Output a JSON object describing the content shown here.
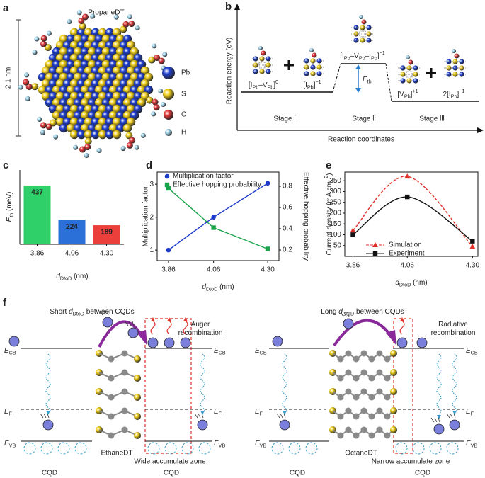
{
  "panel_labels": [
    "a",
    "b",
    "c",
    "d",
    "e",
    "f"
  ],
  "panel_a": {
    "title": "PropaneDT",
    "size": "2.1 nm",
    "legend": [
      {
        "name": "Pb",
        "color": "#1f3fd0"
      },
      {
        "name": "S",
        "color": "#f0cf1a"
      },
      {
        "name": "C",
        "color": "#e0393a"
      },
      {
        "name": "H",
        "color": "#9fd3ea"
      }
    ]
  },
  "panel_b": {
    "y_label": "Reaction energy (eV)",
    "x_label": "Reaction coordinates",
    "stages": [
      "Stage l",
      "Stage ll",
      "Stage lll"
    ],
    "barrier": [
      {
        "i": "E"
      },
      {
        "sub": "th"
      }
    ],
    "species": [
      [
        {
          "t": "[I"
        },
        {
          "sub": "Pb"
        },
        {
          "t": "–V"
        },
        {
          "sub": "Pb"
        },
        {
          "t": "]"
        },
        {
          "sup": "0"
        }
      ],
      [
        {
          "t": "[I"
        },
        {
          "sub": "Pb"
        },
        {
          "t": "]"
        },
        {
          "sup": "−1"
        }
      ],
      [
        {
          "t": "[I"
        },
        {
          "sub": "Pb"
        },
        {
          "t": "–V"
        },
        {
          "sub": "Pb"
        },
        {
          "t": "–I"
        },
        {
          "sub": "Pb"
        },
        {
          "t": "]"
        },
        {
          "sup": "−1"
        }
      ],
      [
        {
          "t": "[V"
        },
        {
          "sub": "Pb"
        },
        {
          "t": "]"
        },
        {
          "sup": "+1"
        }
      ],
      [
        {
          "t": "2[I"
        },
        {
          "sub": "Pb"
        },
        {
          "t": "]"
        },
        {
          "sup": "−1"
        }
      ]
    ]
  },
  "chart_data": [
    {
      "type": "bar",
      "categories": [
        "3.86",
        "4.06",
        "4.30"
      ],
      "values": [
        437,
        224,
        189
      ],
      "colors": [
        "#2fcf6a",
        "#2b6fd8",
        "#ea3f3a"
      ],
      "ylim": [
        70,
        534
      ],
      "y_label": [
        {
          "i": "E"
        },
        {
          "sub": "th"
        },
        {
          "t": " (meV)"
        }
      ],
      "x_label": [
        {
          "i": "d"
        },
        {
          "sub": "DtoD"
        },
        {
          "t": " (nm)"
        }
      ]
    },
    {
      "type": "line",
      "x": [
        3.86,
        4.06,
        4.3
      ],
      "xlim": [
        3.81,
        4.35
      ],
      "xticks": [
        3.86,
        4.06,
        {
          "value": 4.3,
          "label": "4.30"
        }
      ],
      "ylim": [
        0.68,
        3.37
      ],
      "yticks": [
        1,
        2,
        3
      ],
      "y2lim": [
        0.1,
        0.933
      ],
      "y2ticks": [
        0.2,
        0.4,
        0.6,
        0.8
      ],
      "y_label": "Multiplication factor",
      "y2_label": "Effective hopping probability",
      "x_label": [
        {
          "i": "d"
        },
        {
          "sub": "DtoD"
        },
        {
          "t": " (nm)"
        }
      ],
      "series": [
        {
          "name": "Multiplication factor",
          "color": "#1c39c9",
          "marker": "circle",
          "values": [
            1,
            2,
            3.03
          ]
        },
        {
          "name": "Effective hopping probability",
          "color": "#1aa34a",
          "marker": "square",
          "axis": "y2",
          "values": [
            0.78,
            0.41,
            0.21
          ]
        }
      ]
    },
    {
      "type": "line",
      "smooth": true,
      "x": [
        3.86,
        4.06,
        4.3
      ],
      "xlim": [
        3.83,
        4.32
      ],
      "xticks": [
        3.86,
        4.06,
        {
          "value": 4.3,
          "label": "4.30"
        }
      ],
      "ylim": [
        0,
        390
      ],
      "yticks": [
        50,
        100,
        150,
        200,
        250,
        300,
        350
      ],
      "y_label": [
        {
          "t": "Current density (mA cm"
        },
        {
          "sup": "−2"
        },
        {
          "t": ")"
        }
      ],
      "x_label": [
        {
          "i": "d"
        },
        {
          "sub": "DtoD"
        },
        {
          "t": " (nm)"
        }
      ],
      "series": [
        {
          "name": "Simulation",
          "color": "#e0302a",
          "marker": "triangle",
          "dash": true,
          "values": [
            120,
            370,
            45
          ]
        },
        {
          "name": "Experiment",
          "color": "#111111",
          "marker": "square",
          "values": [
            100,
            275,
            70
          ]
        }
      ]
    }
  ],
  "panel_f": {
    "levels": [
      [
        {
          "i": "E"
        },
        {
          "sub": "CB"
        }
      ],
      [
        {
          "i": "E"
        },
        {
          "sub": "F"
        }
      ],
      [
        {
          "i": "E"
        },
        {
          "sub": "VB"
        }
      ]
    ],
    "cqd": "CQD",
    "left": {
      "title": [
        {
          "t": "Short "
        },
        {
          "i": "d"
        },
        {
          "sub": "DtoD"
        },
        {
          "t": " between CQDs"
        }
      ],
      "note": [
        "Auger",
        "recombination"
      ],
      "molecule": "EthaneDT",
      "zone": "Wide accumulate zone"
    },
    "right": {
      "title": [
        {
          "t": "Long "
        },
        {
          "i": "d"
        },
        {
          "sub": "DtoD"
        },
        {
          "t": " between CQDs"
        }
      ],
      "note": [
        "Radiative",
        "recombination"
      ],
      "molecule": "OctaneDT",
      "zone": "Narrow accumulate zone"
    }
  }
}
